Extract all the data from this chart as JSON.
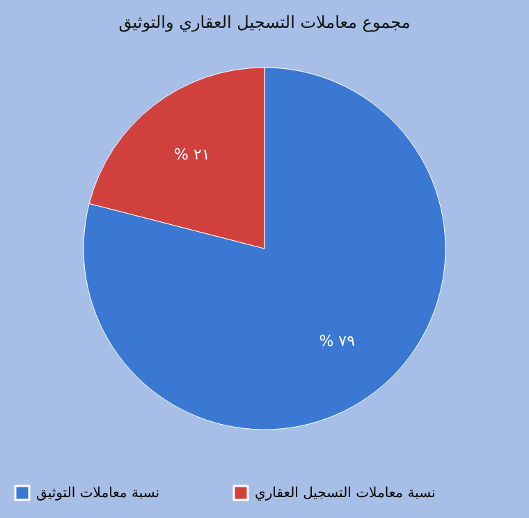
{
  "chart_data": {
    "type": "pie",
    "title": "مجموع معاملات التسجيل العقاري والتوثيق",
    "categories": [
      "نسبة معاملات التوثيق",
      "نسبة معاملات التسجيل العقاري"
    ],
    "values": [
      79,
      21
    ],
    "colors": [
      "#3a78d4",
      "#d0413e"
    ],
    "value_labels": [
      "% ٧٩",
      "% ٢١"
    ],
    "legend": "bottom"
  }
}
